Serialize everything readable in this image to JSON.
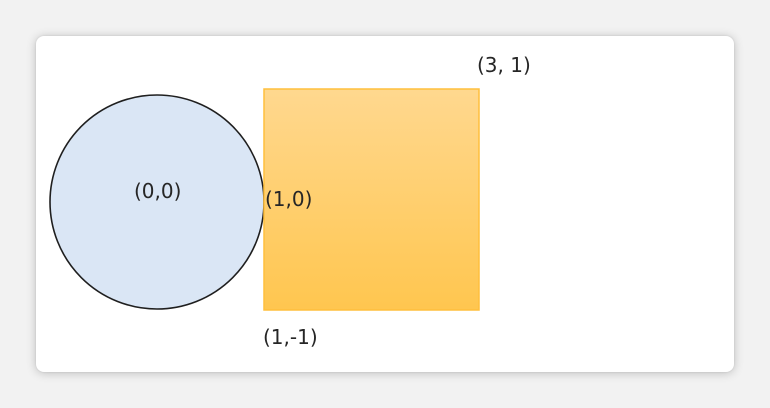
{
  "diagram": {
    "shapes": {
      "circle": {
        "kind": "circle",
        "fill": "#dae6f5",
        "stroke": "#1f1f1f"
      },
      "square": {
        "kind": "square",
        "fill_top": "#ffd88f",
        "fill_bottom": "#ffc64f",
        "stroke": "#ffbf3d"
      }
    },
    "labels": {
      "center": "(0,0)",
      "touch_point": "(1,0)",
      "square_bottom_left": "(1,-1)",
      "square_top_right": "(3, 1)"
    }
  }
}
